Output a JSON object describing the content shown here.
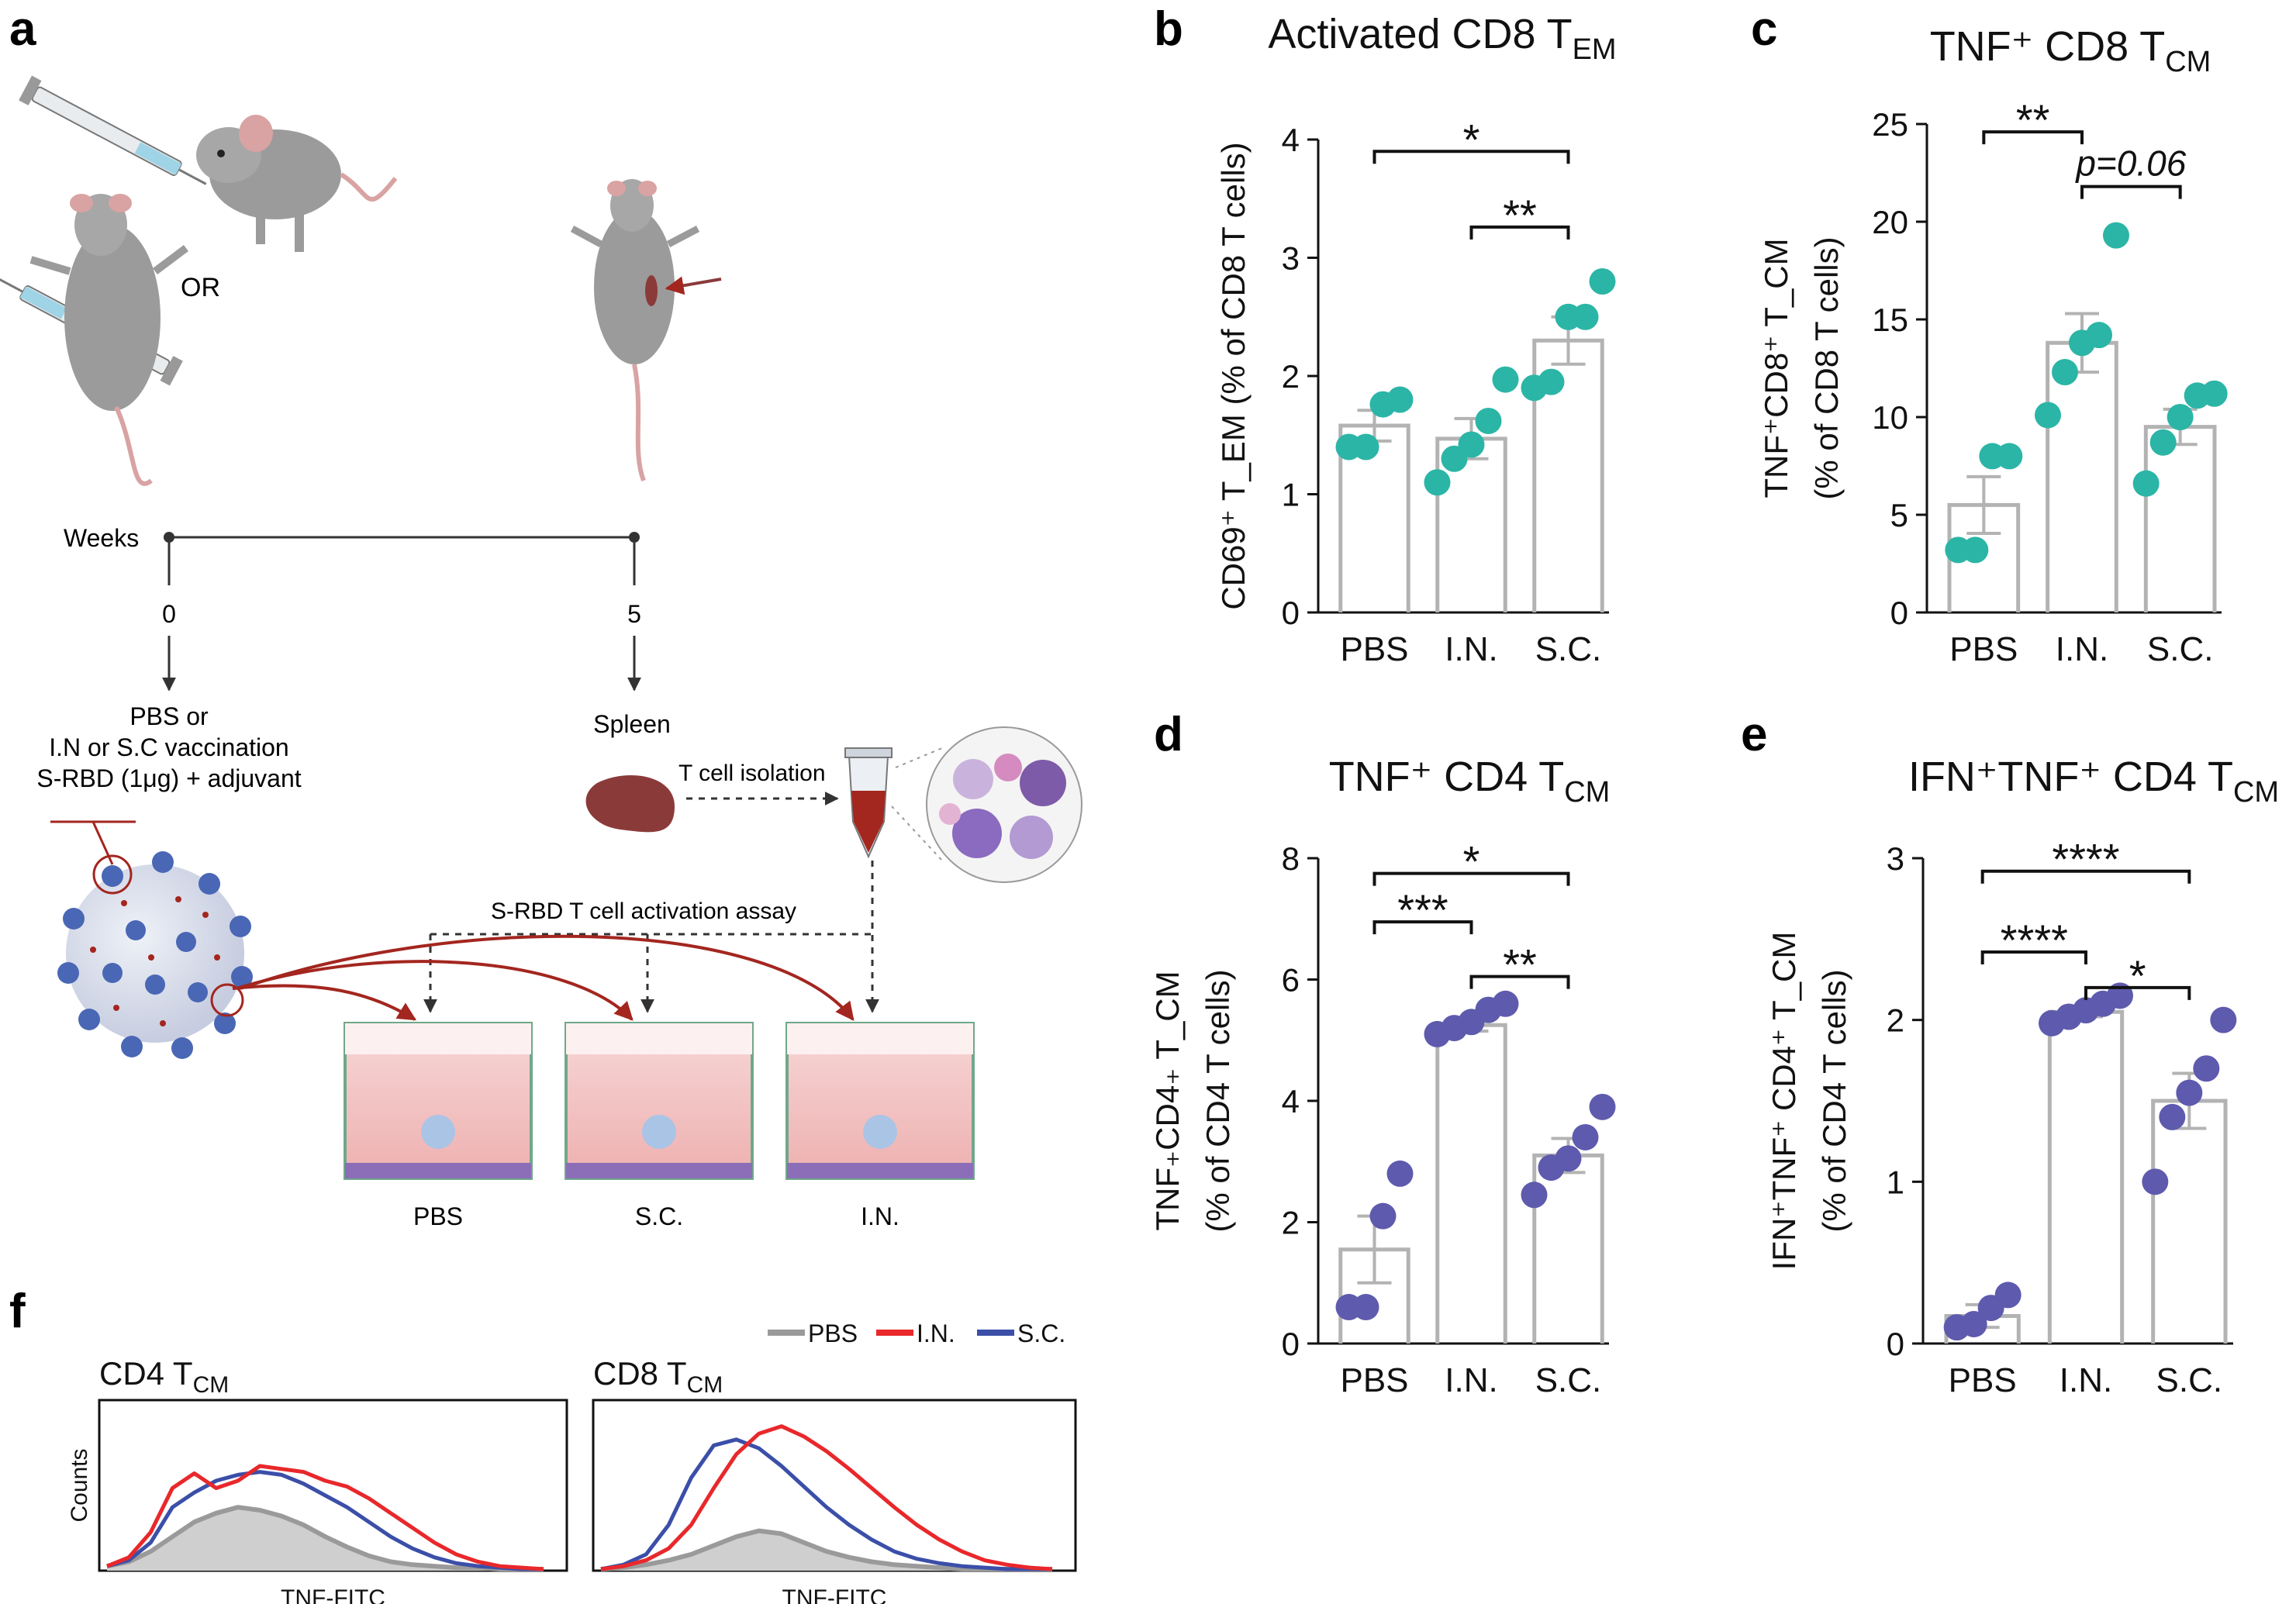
{
  "colors": {
    "teal": "#2bb5a6",
    "purple": "#5e5aad",
    "bar": "#b3b3b3",
    "pbs_line": "#9a9a9a",
    "in_line": "#e8282b",
    "sc_line": "#3b4fa8",
    "mouse": "#9b9b9b",
    "spleen": "#8b3a3a",
    "arrow_red": "#a3261f"
  },
  "panel_labels": [
    "a",
    "b",
    "c",
    "d",
    "e",
    "f"
  ],
  "schematic": {
    "or_label": "OR",
    "weeks_label": "Weeks",
    "week0": "0",
    "week5": "5",
    "vaccination_lines": [
      "PBS or",
      "I.N or S.C vaccination",
      "S-RBD (1μg) + adjuvant"
    ],
    "spleen_label": "Spleen",
    "isolation_label": "T cell isolation",
    "assay_label": "S-RBD T cell activation assay",
    "wells": [
      "PBS",
      "S.C.",
      "I.N."
    ]
  },
  "chart_data": [
    {
      "id": "b",
      "type": "bar",
      "title": "Activated CD8 T",
      "title_sub": "EM",
      "ylabel_line1": "CD69⁺ T_EM (% of CD8 T cells)",
      "categories": [
        "PBS",
        "I.N.",
        "S.C."
      ],
      "means": [
        1.58,
        1.47,
        2.3
      ],
      "sem": [
        0.13,
        0.17,
        0.2
      ],
      "points": [
        [
          1.4,
          1.4,
          1.76,
          1.8
        ],
        [
          1.1,
          1.3,
          1.42,
          1.62,
          1.97
        ],
        [
          1.9,
          1.95,
          2.5,
          2.5,
          2.8
        ]
      ],
      "ylim": [
        0,
        4
      ],
      "yticks": [
        "0",
        "1",
        "2",
        "3",
        "4"
      ],
      "color": "teal",
      "brackets": [
        {
          "from": 0,
          "to": 2,
          "y": 3.9,
          "label": "*"
        },
        {
          "from": 1,
          "to": 2,
          "y": 3.26,
          "label": "**"
        }
      ]
    },
    {
      "id": "c",
      "type": "bar",
      "title": "TNF⁺ CD8 T",
      "title_sub": "CM",
      "ylabel_line1": "TNF⁺CD8⁺ T_CM",
      "ylabel_line2": "(% of CD8 T cells)",
      "categories": [
        "PBS",
        "I.N.",
        "S.C."
      ],
      "means": [
        5.5,
        13.8,
        9.5
      ],
      "sem": [
        1.45,
        1.5,
        0.9
      ],
      "points": [
        [
          3.2,
          3.2,
          8,
          8
        ],
        [
          10.1,
          12.3,
          13.8,
          14.2,
          19.3
        ],
        [
          6.6,
          8.7,
          10,
          11.1,
          11.2
        ]
      ],
      "ylim": [
        0,
        25
      ],
      "yticks": [
        "0",
        "5",
        "10",
        "15",
        "20",
        "25"
      ],
      "color": "teal",
      "brackets": [
        {
          "from": 0,
          "to": 1,
          "y": 24.6,
          "label": "**"
        },
        {
          "from": 1,
          "to": 2,
          "y": 21.8,
          "label": "p=0.06"
        }
      ]
    },
    {
      "id": "d",
      "type": "bar",
      "title": "TNF⁺ CD4 T",
      "title_sub": "CM",
      "ylabel_line1": "TNF₊CD4₊ T_CM",
      "ylabel_line2": "(% of CD4 T cells)",
      "categories": [
        "PBS",
        "I.N.",
        "S.C."
      ],
      "means": [
        1.55,
        5.25,
        3.1
      ],
      "sem": [
        0.55,
        0.1,
        0.28
      ],
      "points": [
        [
          0.6,
          0.6,
          2.1,
          2.8
        ],
        [
          5.1,
          5.2,
          5.3,
          5.5,
          5.6
        ],
        [
          2.45,
          2.9,
          3.05,
          3.4,
          3.9
        ]
      ],
      "ylim": [
        0,
        8
      ],
      "yticks": [
        "0",
        "2",
        "4",
        "6",
        "8"
      ],
      "color": "purple",
      "brackets": [
        {
          "from": 0,
          "to": 2,
          "y": 7.75,
          "label": "*"
        },
        {
          "from": 0,
          "to": 1,
          "y": 6.95,
          "label": "***"
        },
        {
          "from": 1,
          "to": 2,
          "y": 6.05,
          "label": "**"
        }
      ]
    },
    {
      "id": "e",
      "type": "bar",
      "title": "IFN⁺TNF⁺ CD4 T",
      "title_sub": "CM",
      "ylabel_line1": "IFN⁺TNF⁺ CD4⁺ T_CM",
      "ylabel_line2": "(% of CD4 T cells)",
      "categories": [
        "PBS",
        "I.N.",
        "S.C."
      ],
      "means": [
        0.17,
        2.05,
        1.5
      ],
      "sem": [
        0.07,
        0.03,
        0.17
      ],
      "points": [
        [
          0.1,
          0.12,
          0.22,
          0.3
        ],
        [
          1.98,
          2.02,
          2.06,
          2.1,
          2.15
        ],
        [
          1.0,
          1.4,
          1.55,
          1.7,
          2.0
        ]
      ],
      "ylim": [
        0,
        3
      ],
      "yticks": [
        "0",
        "1",
        "2",
        "3"
      ],
      "color": "purple",
      "brackets": [
        {
          "from": 0,
          "to": 2,
          "y": 2.92,
          "label": "****"
        },
        {
          "from": 0,
          "to": 1,
          "y": 2.42,
          "label": "****"
        },
        {
          "from": 1,
          "to": 2,
          "y": 2.2,
          "label": "*"
        }
      ]
    },
    {
      "id": "f",
      "type": "area",
      "title_left": "CD4 T",
      "title_left_sub": "CM",
      "title_right": "CD8 T",
      "title_right_sub": "CM",
      "xlabel": "TNF-FITC",
      "ylabel": "Counts",
      "legend": [
        "PBS",
        "I.N.",
        "S.C."
      ],
      "series_note": "histogram shape, relative height 0-1 over 0-1 fluorescence scale",
      "cd4": {
        "PBS": [
          0.02,
          0.05,
          0.12,
          0.22,
          0.32,
          0.38,
          0.42,
          0.4,
          0.36,
          0.3,
          0.22,
          0.15,
          0.09,
          0.05,
          0.03,
          0.02,
          0.01,
          0.01,
          0,
          0,
          0
        ],
        "I.N.": [
          0.02,
          0.08,
          0.25,
          0.55,
          0.65,
          0.55,
          0.6,
          0.7,
          0.68,
          0.66,
          0.6,
          0.56,
          0.48,
          0.38,
          0.28,
          0.18,
          0.1,
          0.05,
          0.02,
          0.01,
          0
        ],
        "S.C.": [
          0.02,
          0.06,
          0.18,
          0.42,
          0.52,
          0.6,
          0.64,
          0.66,
          0.64,
          0.58,
          0.5,
          0.42,
          0.32,
          0.22,
          0.14,
          0.08,
          0.04,
          0.02,
          0.01,
          0,
          0
        ]
      },
      "cd8": {
        "PBS": [
          0,
          0.01,
          0.03,
          0.06,
          0.1,
          0.16,
          0.22,
          0.26,
          0.24,
          0.18,
          0.12,
          0.08,
          0.05,
          0.03,
          0.02,
          0.01,
          0,
          0,
          0,
          0,
          0
        ],
        "I.N.": [
          0,
          0.02,
          0.06,
          0.14,
          0.3,
          0.55,
          0.78,
          0.92,
          0.97,
          0.9,
          0.8,
          0.68,
          0.55,
          0.42,
          0.3,
          0.2,
          0.12,
          0.06,
          0.03,
          0.01,
          0
        ],
        "S.C.": [
          0,
          0.03,
          0.1,
          0.3,
          0.62,
          0.84,
          0.88,
          0.82,
          0.7,
          0.56,
          0.42,
          0.3,
          0.2,
          0.12,
          0.07,
          0.04,
          0.02,
          0.01,
          0,
          0,
          0
        ]
      }
    }
  ]
}
